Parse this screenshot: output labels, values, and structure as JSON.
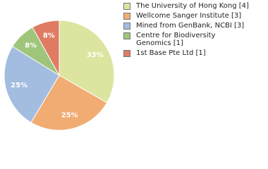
{
  "chart_data": {
    "type": "pie",
    "categories": [
      "The University of Hong Kong [4]",
      "Wellcome Sanger Institute [3]",
      "Mined from GenBank, NCBI [3]",
      "Centre for Biodiversity Genomics [1]",
      "1st Base Pte Ltd [1]"
    ],
    "values": [
      33,
      25,
      25,
      8,
      8
    ],
    "value_labels": [
      "33%",
      "25%",
      "25%",
      "8%",
      "8%"
    ],
    "colors": [
      "#dde49f",
      "#f0ac72",
      "#a3bde1",
      "#9fc57b",
      "#e07b63"
    ]
  }
}
